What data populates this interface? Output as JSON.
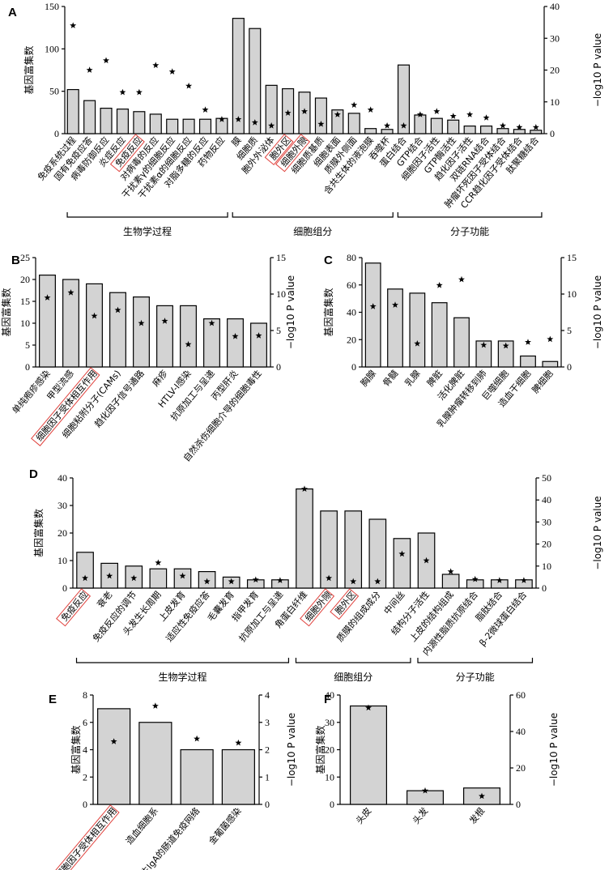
{
  "chart_data": [
    {
      "panel": "A",
      "type": "bar",
      "ylabel": "基因富集数",
      "y2label": "−log10 P value",
      "ylim": [
        0,
        150
      ],
      "y2lim": [
        0,
        40
      ],
      "yticks": [
        0,
        50,
        100,
        150
      ],
      "y2ticks": [
        0,
        10,
        20,
        30,
        40
      ],
      "categories": [
        "免疫系统过程",
        "固有免疫应答",
        "病毒防御反应",
        "炎症反应",
        "免疫反应",
        "对病毒的反应",
        "干扰素γ的细胞反应",
        "干扰素α的细胞反应",
        "对脂多糖的反应",
        "药物反应",
        "膜",
        "细胞质",
        "胞外外泌体",
        "胞外区",
        "细胞外隙",
        "细胞质基质",
        "细胞表面",
        "质膜外侧面",
        "含共生体的液泡膜",
        "吞噬杯",
        "蛋白结合",
        "GTP结合",
        "细胞因子活性",
        "GTP酶活性",
        "趋化因子活性",
        "双链RNA结合",
        "肿瘤坏死因子受体结合",
        "CCR趋化因子受体结合",
        "肽聚糖结合"
      ],
      "values": [
        52,
        39,
        30,
        29,
        26,
        23,
        17,
        17,
        17,
        18,
        136,
        124,
        57,
        53,
        49,
        42,
        28,
        24,
        6,
        5,
        81,
        22,
        18,
        16,
        9,
        9,
        6,
        5,
        4
      ],
      "neglog10p": [
        34,
        20,
        23,
        13,
        13,
        21.5,
        19.5,
        15,
        7.5,
        4.5,
        4.5,
        3.5,
        2.5,
        6.5,
        7,
        3,
        6,
        9,
        7.5,
        2.5,
        2.5,
        6,
        7,
        5.5,
        6,
        5,
        2.5,
        2,
        2
      ],
      "highlighted": [
        "免疫反应",
        "胞外区",
        "细胞外隙"
      ],
      "groups": [
        {
          "label": "生物学过程",
          "from": 0,
          "to": 9
        },
        {
          "label": "细胞组分",
          "from": 10,
          "to": 19
        },
        {
          "label": "分子功能",
          "from": 20,
          "to": 28
        }
      ]
    },
    {
      "panel": "B",
      "type": "bar",
      "ylabel": "基因富集数",
      "y2label": "−log10 P value",
      "ylim": [
        0,
        25
      ],
      "y2lim": [
        0,
        15
      ],
      "yticks": [
        0,
        5,
        10,
        15,
        20,
        25
      ],
      "y2ticks": [
        0,
        5,
        10,
        15
      ],
      "categories": [
        "单纯疱疹感染",
        "甲型流感",
        "细胞因子受体相互作用",
        "细胞粘附分子(CAMs)",
        "趋化因子信号通路",
        "麻疹",
        "HTLV-I感染",
        "抗原加工与呈递",
        "丙型肝炎",
        "自然杀伤细胞介导的细胞毒性"
      ],
      "values": [
        21,
        20,
        19,
        17,
        16,
        14,
        14,
        11,
        11,
        10
      ],
      "neglog10p": [
        9.5,
        10.2,
        7,
        7.8,
        6,
        6.3,
        3.1,
        6,
        4.2,
        4.3
      ],
      "highlighted": [
        "细胞因子受体相互作用"
      ]
    },
    {
      "panel": "C",
      "type": "bar",
      "ylabel": "基因富集数",
      "y2label": "−log10 P value",
      "ylim": [
        0,
        80
      ],
      "y2lim": [
        0,
        15
      ],
      "yticks": [
        0,
        20,
        40,
        60,
        80
      ],
      "y2ticks": [
        0,
        5,
        10,
        15
      ],
      "categories": [
        "胸腺",
        "骨髓",
        "乳腺",
        "脾脏",
        "活化脾脏",
        "乳腺肿瘤转移到肺",
        "巨噬细胞",
        "造血干细胞",
        "脾细胞"
      ],
      "values": [
        76,
        57,
        54,
        47,
        36,
        19,
        19,
        8,
        4
      ],
      "neglog10p": [
        8.3,
        8.5,
        3.2,
        11.2,
        12,
        3,
        2.9,
        3.4,
        3.8
      ],
      "highlighted": []
    },
    {
      "panel": "D",
      "type": "bar",
      "ylabel": "基因富集数",
      "y2label": "−log10 P value",
      "ylim": [
        0,
        40
      ],
      "y2lim": [
        0,
        50
      ],
      "yticks": [
        0,
        10,
        20,
        30,
        40
      ],
      "y2ticks": [
        0,
        10,
        20,
        30,
        40,
        50
      ],
      "categories": [
        "免疫反应",
        "衰老",
        "免疫反应的调节",
        "头发生长周期",
        "上皮发育",
        "适应性免疫应答",
        "毛囊发育",
        "指甲发育",
        "抗原加工与呈递",
        "角蛋白纤维",
        "细胞外隙",
        "胞外区",
        "质膜的组成成分",
        "中间丝",
        "结构分子活性",
        "上皮的结构组成",
        "内源性脂质抗原结合",
        "脂肽结合",
        "β-2微球蛋白结合"
      ],
      "values": [
        13,
        9,
        8,
        7,
        7,
        6,
        4,
        3,
        3,
        36,
        28,
        28,
        25,
        18,
        20,
        5,
        3,
        3,
        3
      ],
      "neglog10p": [
        4.5,
        5.5,
        4.5,
        11.5,
        5.5,
        3,
        3,
        3.8,
        3.5,
        45,
        4.5,
        3,
        3,
        15.5,
        12.5,
        7.5,
        4,
        3.5,
        3.5
      ],
      "highlighted": [
        "免疫反应",
        "细胞外隙",
        "胞外区"
      ],
      "groups": [
        {
          "label": "生物学过程",
          "from": 0,
          "to": 8
        },
        {
          "label": "细胞组分",
          "from": 9,
          "to": 13
        },
        {
          "label": "分子功能",
          "from": 14,
          "to": 18
        }
      ]
    },
    {
      "panel": "E",
      "type": "bar",
      "ylabel": "基因富集数",
      "y2label": "−log10 P value",
      "ylim": [
        0,
        8
      ],
      "y2lim": [
        0,
        4
      ],
      "yticks": [
        0,
        2,
        4,
        6,
        8
      ],
      "y2ticks": [
        0,
        1,
        2,
        3,
        4
      ],
      "categories": [
        "细胞因子受体相互作用",
        "造血细胞系",
        "产生IgA的肠道免疫网络",
        "金葡菌感染"
      ],
      "values": [
        7,
        6,
        4,
        4
      ],
      "neglog10p": [
        2.3,
        3.6,
        2.4,
        2.25
      ],
      "highlighted": [
        "细胞因子受体相互作用"
      ]
    },
    {
      "panel": "F",
      "type": "bar",
      "ylabel": "基因富集数",
      "y2label": "−log10 P value",
      "ylim": [
        0,
        40
      ],
      "y2lim": [
        0,
        60
      ],
      "yticks": [
        0,
        10,
        20,
        30,
        40
      ],
      "y2ticks": [
        0,
        20,
        40,
        60
      ],
      "categories": [
        "头皮",
        "头发",
        "发根"
      ],
      "values": [
        36,
        5,
        6
      ],
      "neglog10p": [
        53,
        7.5,
        4.5
      ],
      "highlighted": []
    }
  ],
  "colors": {
    "bar": "#d3d3d3",
    "highlight_box": "#e0413c",
    "axis": "#000000"
  },
  "marker": "star"
}
